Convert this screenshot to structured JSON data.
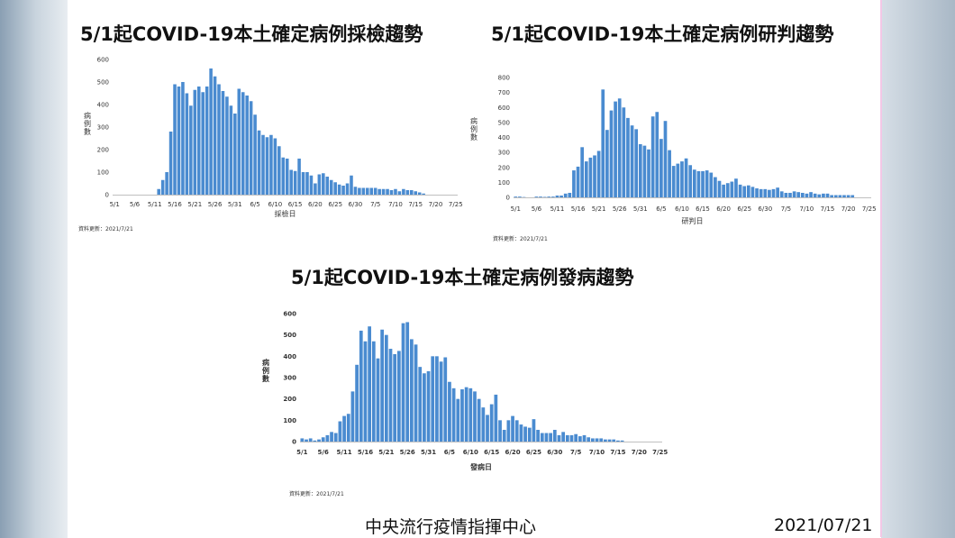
{
  "footer": {
    "org": "中央流行疫情指揮中心",
    "date": "2021/07/21"
  },
  "chart_data": [
    {
      "type": "bar",
      "title": "5/1起COVID-19本土確定病例採檢趨勢",
      "xlabel": "採檢日",
      "ylabel": "病例數",
      "note": "資料更新：2021/7/21",
      "ylim": [
        0,
        600
      ],
      "yticks": [
        0,
        100,
        200,
        300,
        400,
        500,
        600
      ],
      "xtick_labels": [
        "5/1",
        "5/6",
        "5/11",
        "5/16",
        "5/21",
        "5/26",
        "5/31",
        "6/5",
        "6/10",
        "6/15",
        "6/20",
        "6/25",
        "6/30",
        "7/5",
        "7/10",
        "7/15",
        "7/20",
        "7/25"
      ],
      "color": "#4a8bd0",
      "values": [
        0,
        0,
        0,
        0,
        0,
        0,
        0,
        0,
        0,
        0,
        0,
        25,
        65,
        100,
        280,
        490,
        480,
        500,
        450,
        395,
        465,
        480,
        455,
        480,
        560,
        525,
        490,
        460,
        435,
        395,
        360,
        470,
        455,
        440,
        415,
        355,
        285,
        265,
        255,
        265,
        250,
        215,
        165,
        160,
        110,
        105,
        160,
        100,
        100,
        85,
        50,
        90,
        95,
        80,
        65,
        55,
        45,
        40,
        50,
        85,
        35,
        30,
        30,
        30,
        30,
        30,
        25,
        25,
        25,
        20,
        25,
        15,
        25,
        20,
        20,
        15,
        10,
        5
      ],
      "start_date": "5/1"
    },
    {
      "type": "bar",
      "title": "5/1起COVID-19本土確定病例研判趨勢",
      "xlabel": "研判日",
      "ylabel": "病例數",
      "note": "資料更新：2021/7/21",
      "ylim": [
        0,
        800
      ],
      "yticks": [
        0,
        100,
        200,
        300,
        400,
        500,
        600,
        700,
        800
      ],
      "xtick_labels": [
        "5/1",
        "5/6",
        "5/11",
        "5/16",
        "5/21",
        "5/26",
        "5/31",
        "6/5",
        "6/10",
        "6/15",
        "6/20",
        "6/25",
        "6/30",
        "7/5",
        "7/10",
        "7/15",
        "7/20",
        "7/25"
      ],
      "color": "#4a8bd0",
      "values": [
        5,
        5,
        2,
        0,
        0,
        5,
        5,
        3,
        5,
        5,
        12,
        12,
        25,
        30,
        180,
        205,
        335,
        240,
        265,
        280,
        310,
        720,
        450,
        580,
        640,
        660,
        600,
        530,
        480,
        455,
        355,
        345,
        320,
        540,
        570,
        390,
        510,
        315,
        210,
        225,
        240,
        260,
        215,
        185,
        175,
        175,
        180,
        165,
        135,
        110,
        85,
        95,
        105,
        125,
        85,
        75,
        80,
        70,
        60,
        55,
        55,
        50,
        55,
        65,
        40,
        30,
        30,
        40,
        35,
        30,
        25,
        35,
        25,
        20,
        25,
        25,
        15,
        15,
        15,
        15,
        15,
        15
      ],
      "start_date": "5/1"
    },
    {
      "type": "bar",
      "title": "5/1起COVID-19本土確定病例發病趨勢",
      "xlabel": "發病日",
      "ylabel": "病例數",
      "note": "資料更新：2021/7/21",
      "ylim": [
        0,
        600
      ],
      "yticks": [
        0,
        100,
        200,
        300,
        400,
        500,
        600
      ],
      "xtick_labels": [
        "5/1",
        "5/6",
        "5/11",
        "5/16",
        "5/21",
        "5/26",
        "5/31",
        "6/5",
        "6/10",
        "6/15",
        "6/20",
        "6/25",
        "6/30",
        "7/5",
        "7/10",
        "7/15",
        "7/20",
        "7/25"
      ],
      "color": "#4a8bd0",
      "values": [
        15,
        10,
        15,
        5,
        10,
        20,
        30,
        45,
        40,
        95,
        120,
        130,
        235,
        360,
        520,
        470,
        540,
        470,
        390,
        525,
        500,
        435,
        410,
        425,
        555,
        560,
        480,
        455,
        350,
        320,
        330,
        400,
        400,
        375,
        395,
        280,
        250,
        200,
        245,
        255,
        250,
        235,
        200,
        160,
        125,
        175,
        220,
        100,
        55,
        100,
        120,
        100,
        80,
        70,
        65,
        105,
        55,
        40,
        40,
        40,
        55,
        30,
        45,
        30,
        30,
        35,
        25,
        30,
        20,
        15,
        15,
        15,
        10,
        10,
        10,
        5,
        5
      ]
    }
  ]
}
